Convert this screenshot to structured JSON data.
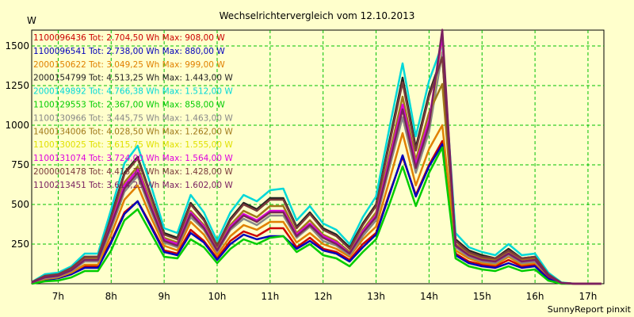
{
  "chart_data": {
    "type": "line",
    "title": "Wechselrichtervergleich vom 12.10.2013",
    "ylabel": "W",
    "xlabel": "",
    "footer": "SunnyReport pinxit",
    "x_range": [
      6.5,
      17.3
    ],
    "ylim": [
      0,
      1600
    ],
    "y_ticks": [
      250,
      500,
      750,
      1000,
      1250,
      1500
    ],
    "y_tick_labels": [
      "250",
      "500",
      "750",
      "1000",
      "1250",
      "1500"
    ],
    "x_ticks": [
      7,
      8,
      9,
      10,
      11,
      12,
      13,
      14,
      15,
      16,
      17
    ],
    "x_tick_labels": [
      "7h",
      "8h",
      "9h",
      "10h",
      "11h",
      "12h",
      "13h",
      "14h",
      "15h",
      "16h",
      "17h"
    ],
    "grid": true,
    "legend_position": "top-left",
    "x": [
      6.5,
      6.75,
      7.0,
      7.25,
      7.5,
      7.75,
      8.0,
      8.25,
      8.5,
      8.75,
      9.0,
      9.25,
      9.5,
      9.75,
      10.0,
      10.25,
      10.5,
      10.75,
      11.0,
      11.25,
      11.5,
      11.75,
      12.0,
      12.25,
      12.5,
      12.75,
      13.0,
      13.25,
      13.5,
      13.75,
      14.0,
      14.25,
      14.5,
      14.75,
      15.0,
      15.25,
      15.5,
      15.75,
      16.0,
      16.25,
      16.5,
      16.75,
      17.0,
      17.25
    ],
    "series": [
      {
        "name": "1100096436 Tot: 2.704,50 Wh Max: 908,00 W",
        "color": "#cc0000",
        "values": [
          5,
          25,
          35,
          60,
          110,
          110,
          270,
          450,
          520,
          370,
          210,
          190,
          340,
          270,
          160,
          270,
          330,
          300,
          350,
          350,
          230,
          290,
          220,
          200,
          150,
          250,
          320,
          570,
          800,
          560,
          750,
          900,
          190,
          140,
          120,
          110,
          150,
          110,
          120,
          40,
          5,
          0,
          0,
          0
        ]
      },
      {
        "name": "1100096541 Tot: 2.738,00 Wh Max: 880,00 W",
        "color": "#0000bb",
        "values": [
          5,
          25,
          35,
          60,
          100,
          100,
          260,
          440,
          520,
          360,
          200,
          180,
          320,
          260,
          150,
          250,
          310,
          280,
          300,
          300,
          220,
          270,
          210,
          190,
          140,
          230,
          310,
          560,
          810,
          550,
          740,
          880,
          180,
          130,
          110,
          100,
          130,
          100,
          110,
          30,
          5,
          0,
          0,
          0
        ]
      },
      {
        "name": "2000150622 Tot: 3.049,25 Wh Max: 999,00 W",
        "color": "#e08000",
        "values": [
          5,
          30,
          40,
          70,
          120,
          120,
          310,
          530,
          620,
          420,
          240,
          210,
          390,
          310,
          180,
          300,
          370,
          340,
          390,
          390,
          260,
          320,
          250,
          220,
          170,
          280,
          360,
          650,
          950,
          620,
          850,
          1000,
          210,
          160,
          130,
          120,
          170,
          120,
          130,
          50,
          5,
          0,
          0,
          0
        ]
      },
      {
        "name": "2000154799 Tot: 4.513,25 Wh Max: 1.443,00 W",
        "color": "#222222",
        "values": [
          10,
          50,
          60,
          100,
          170,
          170,
          430,
          700,
          800,
          560,
          320,
          290,
          510,
          410,
          240,
          410,
          510,
          470,
          540,
          540,
          360,
          450,
          350,
          310,
          230,
          380,
          500,
          900,
          1300,
          860,
          1200,
          1440,
          280,
          210,
          180,
          160,
          220,
          160,
          170,
          60,
          5,
          0,
          0,
          0
        ]
      },
      {
        "name": "2000149892 Tot: 4.766,38 Wh Max: 1.512,00 W",
        "color": "#00d8d8",
        "values": [
          10,
          60,
          70,
          110,
          190,
          190,
          470,
          760,
          870,
          620,
          350,
          320,
          560,
          450,
          270,
          450,
          560,
          520,
          590,
          600,
          400,
          490,
          380,
          340,
          250,
          420,
          550,
          980,
          1390,
          930,
          1280,
          1510,
          320,
          230,
          200,
          180,
          250,
          180,
          190,
          70,
          8,
          0,
          0,
          0
        ]
      },
      {
        "name": "1100129553 Tot: 2.367,00 Wh Max: 858,00 W",
        "color": "#00cc00",
        "values": [
          0,
          15,
          20,
          40,
          80,
          80,
          210,
          400,
          470,
          320,
          170,
          160,
          280,
          230,
          130,
          220,
          280,
          250,
          290,
          300,
          200,
          250,
          180,
          160,
          110,
          200,
          280,
          500,
          740,
          490,
          700,
          860,
          160,
          110,
          90,
          80,
          110,
          80,
          90,
          20,
          0,
          0,
          0,
          0
        ]
      },
      {
        "name": "1100130966 Tot: 3.445,75 Wh Max: 1.463,00 W",
        "color": "#888888",
        "values": [
          8,
          35,
          45,
          80,
          140,
          140,
          350,
          580,
          680,
          460,
          260,
          230,
          420,
          340,
          200,
          340,
          410,
          370,
          430,
          430,
          290,
          360,
          270,
          240,
          180,
          300,
          400,
          730,
          1050,
          700,
          960,
          1460,
          230,
          170,
          140,
          130,
          180,
          130,
          140,
          50,
          5,
          0,
          0,
          0
        ]
      },
      {
        "name": "1400134006 Tot: 4.028,50 Wh Max: 1.262,00 W",
        "color": "#a07818",
        "values": [
          10,
          45,
          55,
          90,
          160,
          160,
          390,
          640,
          740,
          510,
          290,
          260,
          460,
          370,
          220,
          370,
          460,
          420,
          490,
          490,
          320,
          400,
          310,
          270,
          200,
          340,
          450,
          810,
          1180,
          780,
          1080,
          1260,
          250,
          190,
          160,
          150,
          200,
          150,
          160,
          55,
          5,
          0,
          0,
          0
        ]
      },
      {
        "name": "1100130025 Tot: 3.615,75 Wh Max: 1.555,00 W",
        "color": "#e0e000",
        "values": [
          8,
          40,
          50,
          85,
          150,
          150,
          370,
          600,
          700,
          480,
          270,
          240,
          440,
          350,
          210,
          350,
          430,
          390,
          450,
          450,
          300,
          370,
          290,
          250,
          190,
          320,
          420,
          760,
          1100,
          730,
          1000,
          1555,
          240,
          180,
          150,
          140,
          190,
          140,
          150,
          50,
          5,
          0,
          0,
          0
        ]
      },
      {
        "name": "1100131074 Tot: 3.724,00 Wh Max: 1.564,00 W",
        "color": "#dd00dd",
        "values": [
          8,
          40,
          50,
          85,
          150,
          150,
          380,
          620,
          720,
          490,
          280,
          250,
          450,
          360,
          210,
          360,
          440,
          400,
          460,
          460,
          310,
          380,
          300,
          260,
          190,
          330,
          430,
          780,
          1130,
          750,
          1030,
          1564,
          240,
          180,
          150,
          140,
          190,
          140,
          150,
          50,
          5,
          0,
          0,
          0
        ]
      },
      {
        "name": "2000001478 Tot: 4.415,75 Wh Max: 1.428,00 W",
        "color": "#7a3a3a",
        "values": [
          10,
          50,
          60,
          100,
          170,
          170,
          420,
          690,
          790,
          550,
          310,
          280,
          500,
          400,
          240,
          400,
          500,
          460,
          530,
          530,
          350,
          440,
          340,
          300,
          220,
          370,
          490,
          880,
          1270,
          840,
          1180,
          1428,
          270,
          200,
          170,
          160,
          210,
          160,
          170,
          60,
          5,
          0,
          0,
          0
        ]
      },
      {
        "name": "1100213451 Tot: 3.614,25 Wh Max: 1.602,00 W",
        "color": "#7a2060",
        "values": [
          8,
          40,
          50,
          85,
          150,
          150,
          370,
          600,
          700,
          480,
          270,
          240,
          440,
          350,
          210,
          350,
          430,
          390,
          450,
          450,
          300,
          370,
          290,
          250,
          190,
          320,
          420,
          760,
          1100,
          730,
          1000,
          1602,
          240,
          180,
          150,
          140,
          190,
          140,
          150,
          50,
          5,
          0,
          0,
          0
        ]
      }
    ]
  }
}
